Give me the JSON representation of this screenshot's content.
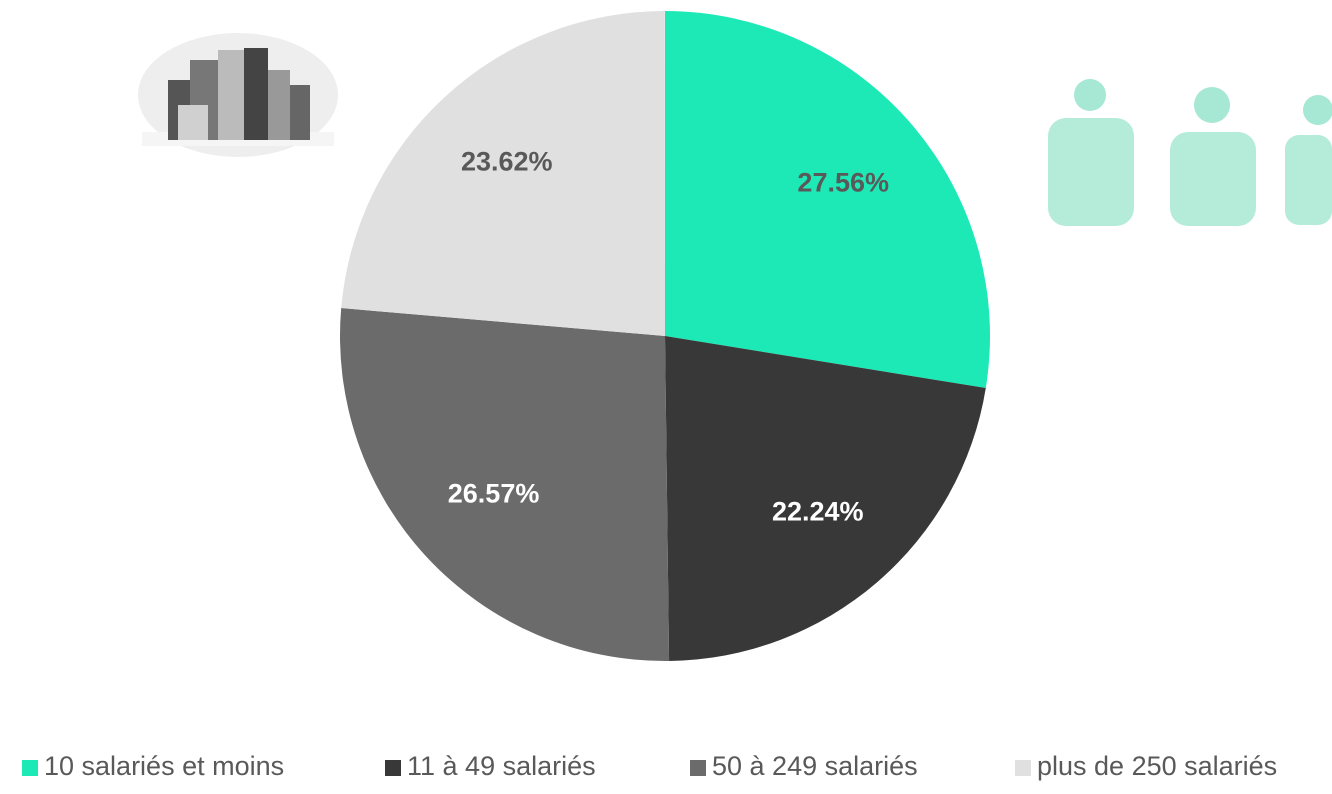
{
  "chart_data": {
    "type": "pie",
    "categories": [
      "10 salariés et moins",
      "11 à 49 salariés",
      "50 à 249 salariés",
      "plus de 250 salariés"
    ],
    "values": [
      27.56,
      22.24,
      26.57,
      23.62
    ],
    "value_labels": [
      "27.56%",
      "22.24%",
      "26.57%",
      "23.62%"
    ],
    "colors": [
      "#1de9b6",
      "#383838",
      "#6b6b6b",
      "#e0e0e0"
    ],
    "legend": "bottom"
  }
}
